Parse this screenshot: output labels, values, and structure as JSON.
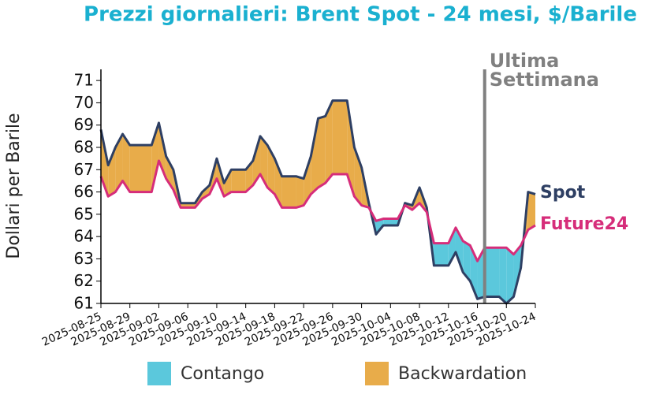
{
  "chart_data": {
    "type": "line",
    "title": "Prezzi giornalieri: Brent Spot - 24 mesi, $/Barile",
    "y_label": "Dollari per Barile",
    "x": [
      "2025-08-25",
      "2025-08-26",
      "2025-08-27",
      "2025-08-28",
      "2025-08-29",
      "2025-09-01",
      "2025-09-02",
      "2025-09-03",
      "2025-09-04",
      "2025-09-05",
      "2025-09-07",
      "2025-09-08",
      "2025-09-09",
      "2025-09-10",
      "2025-09-11",
      "2025-09-12",
      "2025-09-14",
      "2025-09-15",
      "2025-09-16",
      "2025-09-17",
      "2025-09-18",
      "2025-09-19",
      "2025-09-21",
      "2025-09-22",
      "2025-09-23",
      "2025-09-24",
      "2025-09-25",
      "2025-09-26",
      "2025-09-28",
      "2025-09-29",
      "2025-09-30",
      "2025-10-01",
      "2025-10-02",
      "2025-10-03",
      "2025-10-05",
      "2025-10-06",
      "2025-10-07",
      "2025-10-08",
      "2025-10-09",
      "2025-10-10",
      "2025-10-12",
      "2025-10-13",
      "2025-10-14",
      "2025-10-15",
      "2025-10-16",
      "2025-10-17",
      "2025-10-19",
      "2025-10-20",
      "2025-10-21",
      "2025-10-22",
      "2025-10-23",
      "2025-10-24"
    ],
    "series": [
      {
        "name": "Spot",
        "color": "#2e3f63",
        "values": [
          68.8,
          67.2,
          68.0,
          68.6,
          68.1,
          68.1,
          69.1,
          67.6,
          67.0,
          65.5,
          65.5,
          66.0,
          66.3,
          67.5,
          66.4,
          67.0,
          67.0,
          67.4,
          68.5,
          68.1,
          67.5,
          66.7,
          66.7,
          66.6,
          67.6,
          69.3,
          69.4,
          70.1,
          70.1,
          68.0,
          67.1,
          65.5,
          64.1,
          64.5,
          64.5,
          65.5,
          65.4,
          66.2,
          65.3,
          62.7,
          62.7,
          63.3,
          62.4,
          62.0,
          61.2,
          61.3,
          61.3,
          61.0,
          61.3,
          62.6,
          66.0,
          65.9
        ]
      },
      {
        "name": "Future24",
        "color": "#d62d7a",
        "values": [
          66.7,
          65.8,
          66.0,
          66.5,
          66.0,
          66.0,
          67.4,
          66.6,
          66.1,
          65.3,
          65.3,
          65.7,
          65.9,
          66.6,
          65.8,
          66.0,
          66.0,
          66.3,
          66.8,
          66.2,
          65.9,
          65.3,
          65.3,
          65.4,
          65.9,
          66.2,
          66.4,
          66.8,
          66.8,
          65.8,
          65.4,
          65.3,
          64.7,
          64.8,
          64.8,
          65.4,
          65.2,
          65.5,
          65.1,
          63.7,
          63.7,
          64.4,
          63.8,
          63.6,
          62.9,
          63.5,
          63.5,
          63.5,
          63.2,
          63.6,
          64.3,
          64.5
        ]
      }
    ],
    "fill_legend": [
      {
        "name": "Contango",
        "color": "#5bc8dc"
      },
      {
        "name": "Backwardation",
        "color": "#e8ac4a"
      }
    ],
    "xlim": [
      "2025-08-25",
      "2025-10-24"
    ],
    "xticks": [
      "2025-08-25",
      "2025-08-29",
      "2025-09-02",
      "2025-09-06",
      "2025-09-10",
      "2025-09-14",
      "2025-09-18",
      "2025-09-22",
      "2025-09-26",
      "2025-09-30",
      "2025-10-04",
      "2025-10-08",
      "2025-10-12",
      "2025-10-16",
      "2025-10-20",
      "2025-10-24"
    ],
    "ylim": [
      61,
      71.5
    ],
    "yticks": [
      61,
      62,
      63,
      64,
      65,
      66,
      67,
      68,
      69,
      70,
      71
    ],
    "marker_line": {
      "x": "2025-10-17",
      "label": "Ultima Settimana",
      "color": "#808080"
    }
  }
}
